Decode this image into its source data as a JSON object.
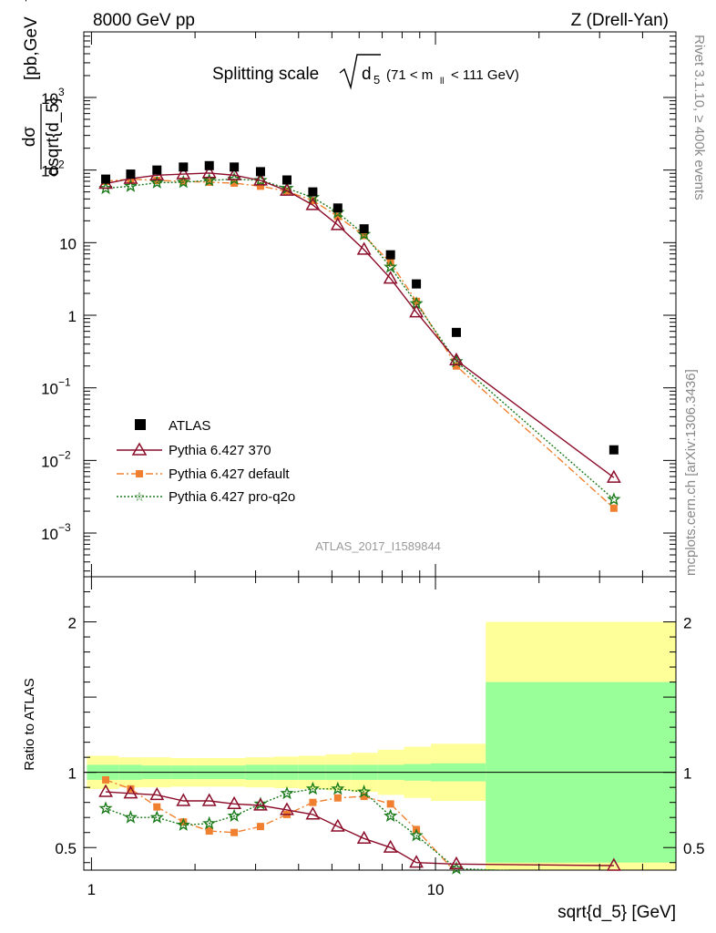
{
  "header": {
    "left": "8000 GeV pp",
    "right": "Z (Drell-Yan)"
  },
  "title": {
    "main": "Splitting scale",
    "sub": "5",
    "var": "d",
    "range_pre": "(71 < m",
    "range_sub": "ll",
    "range_post": " < 111 GeV)"
  },
  "ylabel_top": "dσ / dsqrt{d_5} [pb,GeV⁻¹]",
  "ylabel_top_num": "dσ",
  "ylabel_top_den": "dsqrt{d_5}",
  "ylabel_top_unit": "[pb,GeV",
  "ylabel_top_exp": "-1",
  "ylabel_bottom": "Ratio to ATLAS",
  "xlabel": "sqrt{d_5} [GeV]",
  "side_label_top": "Rivet 3.1.10, ≥ 400k events",
  "side_label_bottom": "mcplots.cern.ch [arXiv:1306.3436]",
  "watermark": "ATLAS_2017_I1589844",
  "legend": {
    "atlas": "ATLAS",
    "p370": "Pythia 6.427 370",
    "pdefault": "Pythia 6.427 default",
    "pq2o": "Pythia 6.427 pro-q2o"
  },
  "colors": {
    "atlas": "#000000",
    "p370": "#8b0d2a",
    "pdefault": "#f08030",
    "pq2o": "#1a7a1a",
    "band_green": "#99ff99",
    "band_yellow": "#ffff99"
  },
  "chart_data": [
    {
      "type": "scatter",
      "title": "Splitting scale √d5 (71 < m_ll < 111 GeV)",
      "xlabel": "sqrt{d_5} [GeV]",
      "ylabel": "dσ/dsqrt{d_5} [pb,GeV⁻¹]",
      "xscale": "log",
      "yscale": "log",
      "xlim": [
        0.95,
        50
      ],
      "ylim": [
        0.00025,
        8000
      ],
      "x": [
        1.1,
        1.3,
        1.55,
        1.85,
        2.2,
        2.6,
        3.1,
        3.7,
        4.4,
        5.2,
        6.2,
        7.4,
        8.8,
        11.5,
        33
      ],
      "yticks": [
        "10^-3",
        "10^-2",
        "10^-1",
        "1",
        "10",
        "10^2",
        "10^3"
      ],
      "xticks": [
        "1",
        "10"
      ],
      "legend_position": "bottom-left",
      "series": [
        {
          "name": "ATLAS",
          "values": [
            75,
            88,
            100,
            110,
            115,
            110,
            95,
            73,
            50,
            30,
            15.5,
            6.8,
            2.7,
            0.58,
            0.014
          ]
        },
        {
          "name": "Pythia 6.427 370",
          "values": [
            65,
            76,
            85,
            88,
            91,
            85,
            72,
            52,
            33,
            17.5,
            8,
            3.2,
            1.1,
            0.24,
            0.0058
          ]
        },
        {
          "name": "Pythia 6.427 default",
          "values": [
            70,
            75,
            72,
            70,
            68,
            66,
            60,
            51,
            38,
            23,
            12.5,
            5.3,
            1.55,
            0.2,
            0.0022
          ]
        },
        {
          "name": "Pythia 6.427 pro-q2o",
          "values": [
            56,
            60,
            67,
            68,
            72,
            75,
            72,
            56,
            42,
            26,
            13,
            4.6,
            1.45,
            0.23,
            0.0029
          ]
        }
      ]
    },
    {
      "type": "line",
      "ylabel": "Ratio to ATLAS",
      "xlabel": "sqrt{d_5} [GeV]",
      "xscale": "log",
      "xlim": [
        0.95,
        50
      ],
      "ylim": [
        0.35,
        2.3
      ],
      "yticks": [
        "0.5",
        "1",
        "2"
      ],
      "x": [
        1.1,
        1.3,
        1.55,
        1.85,
        2.2,
        2.6,
        3.1,
        3.7,
        4.4,
        5.2,
        6.2,
        7.4,
        8.8,
        11.5,
        33
      ],
      "series": [
        {
          "name": "Pythia 6.427 370",
          "values": [
            0.87,
            0.86,
            0.85,
            0.81,
            0.81,
            0.79,
            0.78,
            0.75,
            0.72,
            0.64,
            0.56,
            0.5,
            0.4,
            0.39,
            0.38
          ]
        },
        {
          "name": "Pythia 6.427 default",
          "values": [
            0.95,
            0.89,
            0.77,
            0.67,
            0.61,
            0.6,
            0.64,
            0.72,
            0.8,
            0.83,
            0.84,
            0.79,
            0.62,
            0.33,
            0.3
          ]
        },
        {
          "name": "Pythia 6.427 pro-q2o",
          "values": [
            0.76,
            0.7,
            0.7,
            0.65,
            0.66,
            0.71,
            0.79,
            0.86,
            0.89,
            0.89,
            0.87,
            0.71,
            0.58,
            0.36,
            0.32
          ]
        }
      ],
      "bands": {
        "edges": [
          0.97,
          1.2,
          1.4,
          1.7,
          2.0,
          2.4,
          2.8,
          3.4,
          4.0,
          4.8,
          5.7,
          6.8,
          8.1,
          9.7,
          14,
          50
        ],
        "green_half": [
          0.05,
          0.05,
          0.045,
          0.045,
          0.045,
          0.045,
          0.05,
          0.05,
          0.05,
          0.05,
          0.05,
          0.05,
          0.055,
          0.06,
          0.6
        ],
        "yellow_half": [
          0.11,
          0.1,
          0.1,
          0.095,
          0.095,
          0.095,
          0.1,
          0.105,
          0.11,
          0.12,
          0.13,
          0.15,
          0.17,
          0.19,
          1.0
        ]
      }
    }
  ]
}
